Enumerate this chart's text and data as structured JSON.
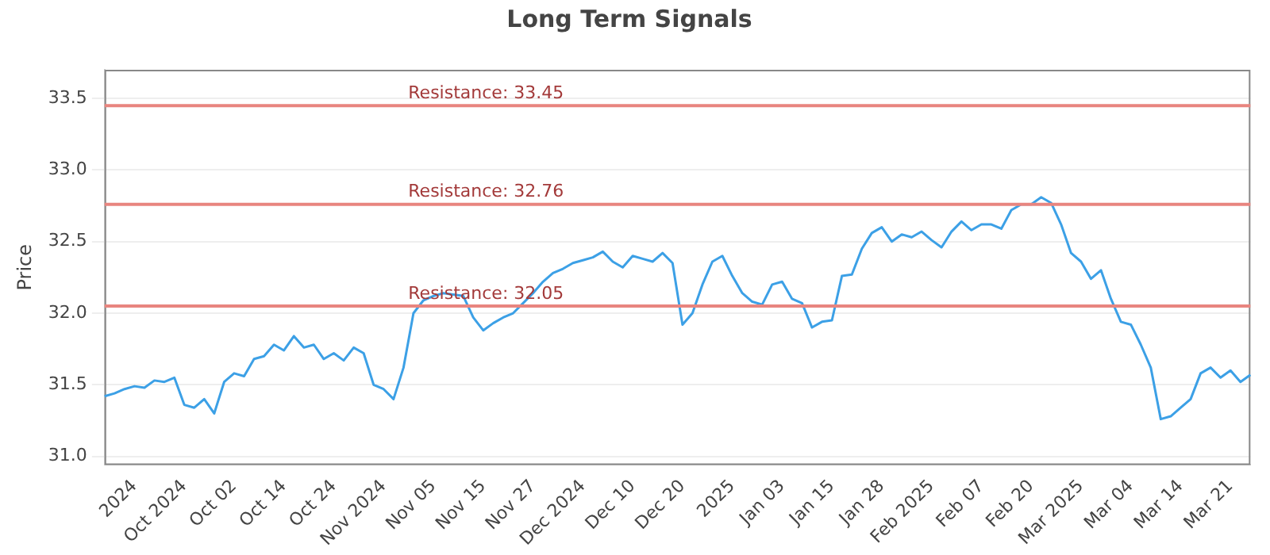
{
  "chart_data": {
    "type": "line",
    "title": "Long Term Signals",
    "ylabel": "Price",
    "categories": [
      null,
      null,
      null,
      "2024",
      null,
      null,
      null,
      null,
      "Oct 2024",
      null,
      null,
      null,
      null,
      "Oct 02",
      null,
      null,
      null,
      null,
      "Oct 14",
      null,
      null,
      null,
      null,
      "Oct 24",
      null,
      null,
      null,
      null,
      "Nov 2024",
      null,
      null,
      null,
      null,
      "Nov 05",
      null,
      null,
      null,
      null,
      "Nov 15",
      null,
      null,
      null,
      null,
      "Nov 27",
      null,
      null,
      null,
      null,
      "Dec 2024",
      null,
      null,
      null,
      null,
      "Dec 10",
      null,
      null,
      null,
      null,
      "Dec 20",
      null,
      null,
      null,
      null,
      "2025",
      null,
      null,
      null,
      null,
      "Jan 03",
      null,
      null,
      null,
      null,
      "Jan 15",
      null,
      null,
      null,
      null,
      "Jan 28",
      null,
      null,
      null,
      null,
      "Feb 2025",
      null,
      null,
      null,
      null,
      "Feb 07",
      null,
      null,
      null,
      null,
      "Feb 20",
      null,
      null,
      null,
      null,
      "Mar 2025",
      null,
      null,
      null,
      null,
      "Mar 04",
      null,
      null,
      null,
      null,
      "Mar 14",
      null,
      null,
      null,
      null,
      "Mar 21",
      null,
      null
    ],
    "series": [
      {
        "color": "#3ca0e6",
        "values": [
          31.42,
          31.44,
          31.47,
          31.49,
          31.48,
          31.53,
          31.52,
          31.55,
          31.36,
          31.34,
          31.4,
          31.3,
          31.52,
          31.58,
          31.56,
          31.68,
          31.7,
          31.78,
          31.74,
          31.84,
          31.76,
          31.78,
          31.68,
          31.72,
          31.67,
          31.76,
          31.72,
          31.5,
          31.47,
          31.4,
          31.62,
          32.0,
          32.09,
          32.12,
          32.14,
          32.13,
          32.12,
          31.97,
          31.88,
          31.93,
          31.97,
          32.0,
          32.07,
          32.14,
          32.22,
          32.28,
          32.31,
          32.35,
          32.37,
          32.39,
          32.43,
          32.36,
          32.32,
          32.4,
          32.38,
          32.36,
          32.42,
          32.35,
          31.92,
          32.0,
          32.2,
          32.36,
          32.4,
          32.26,
          32.14,
          32.08,
          32.06,
          32.2,
          32.22,
          32.1,
          32.07,
          31.9,
          31.94,
          31.95,
          32.26,
          32.27,
          32.45,
          32.56,
          32.6,
          32.5,
          32.55,
          32.53,
          32.57,
          32.51,
          32.46,
          32.57,
          32.64,
          32.58,
          32.62,
          32.62,
          32.59,
          32.72,
          32.76,
          32.76,
          32.81,
          32.77,
          32.62,
          32.42,
          32.36,
          32.24,
          32.3,
          32.1,
          31.94,
          31.92,
          31.78,
          31.62,
          31.26,
          31.28,
          31.34,
          31.4,
          31.58,
          31.62,
          31.55,
          31.6,
          31.52,
          31.57
        ]
      }
    ],
    "ylim": [
      30.94,
      33.7
    ],
    "yticks": [
      {
        "value": 31,
        "label": "31.0"
      },
      {
        "value": 31.5,
        "label": "31.5"
      },
      {
        "value": 32,
        "label": "32.0"
      },
      {
        "value": 32.5,
        "label": "32.5"
      },
      {
        "value": 33,
        "label": "33.0"
      },
      {
        "value": 33.5,
        "label": "33.5"
      }
    ],
    "ref_lines": [
      {
        "axis": "y",
        "value": 33.45,
        "label": "Resistance: 33.45",
        "color": "#e8857f"
      },
      {
        "axis": "y",
        "value": 32.76,
        "label": "Resistance: 32.76",
        "color": "#e8857f"
      },
      {
        "axis": "y",
        "value": 32.05,
        "label": "Resistance: 32.05",
        "color": "#e8857f"
      }
    ],
    "grid": "y",
    "legend": false,
    "marker": "none",
    "line_style": "solid"
  }
}
